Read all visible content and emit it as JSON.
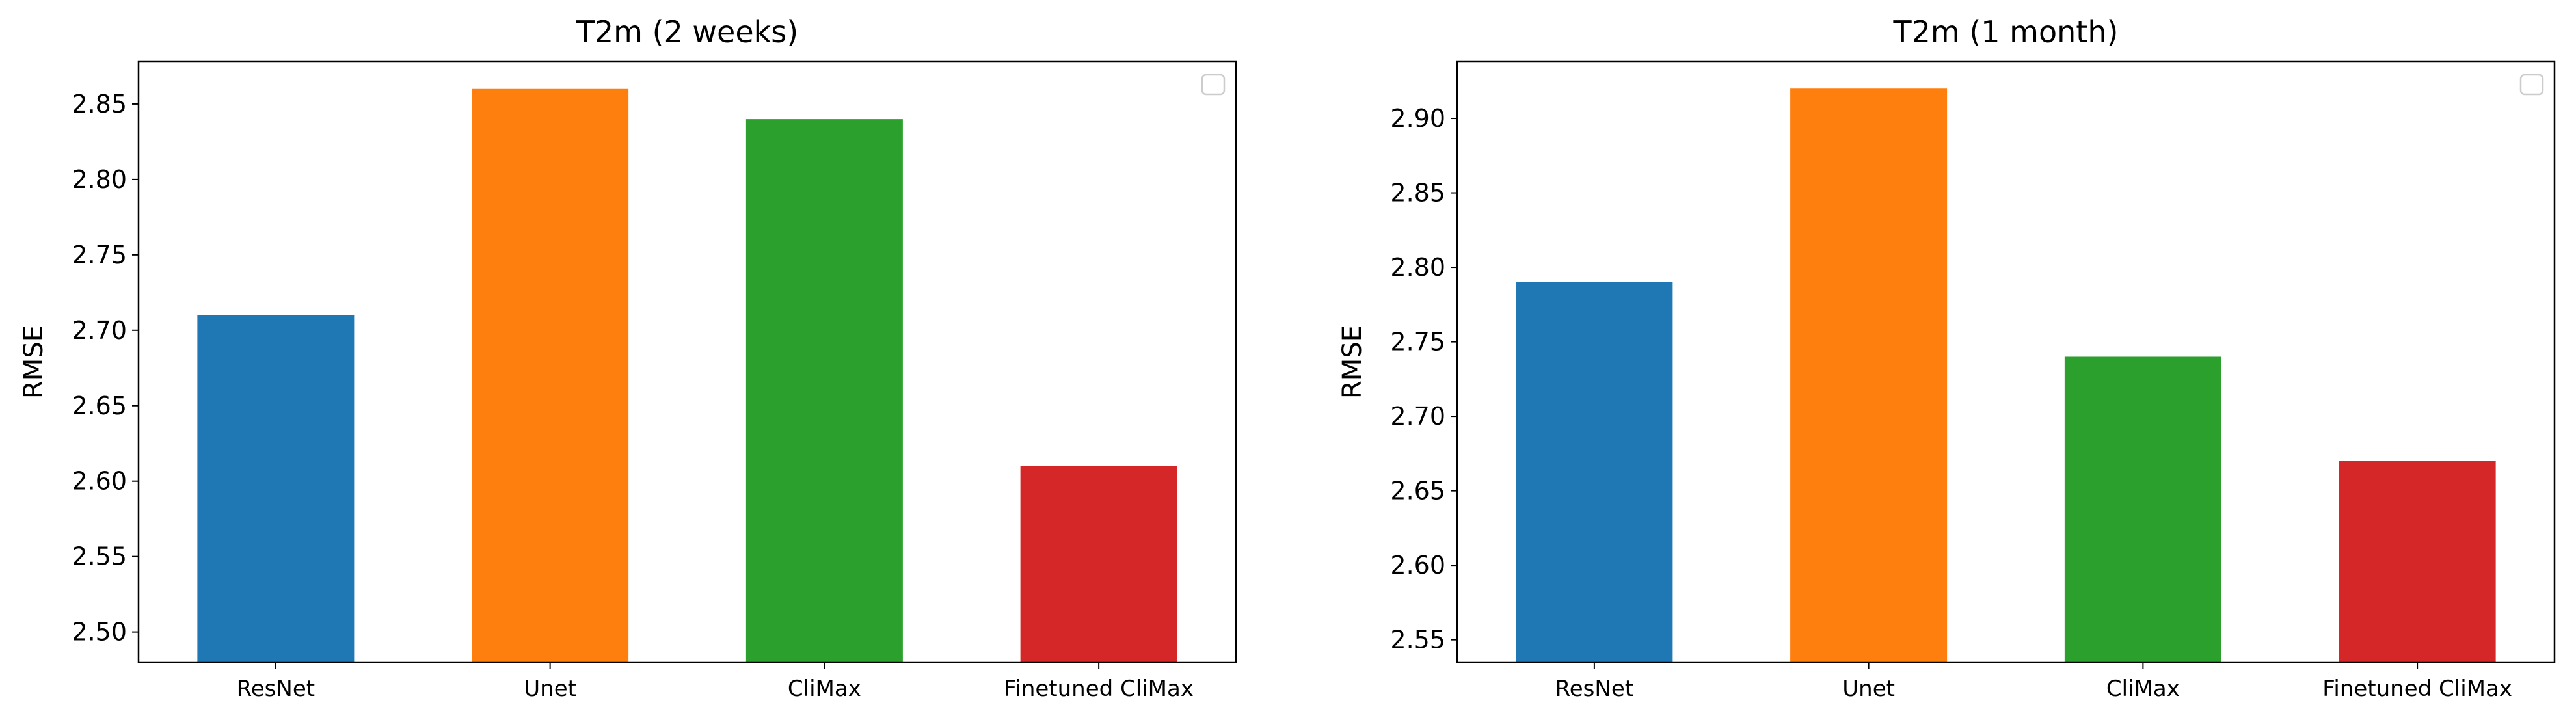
{
  "chart_data": [
    {
      "type": "bar",
      "title": "T2m (2 weeks)",
      "xlabel": "",
      "ylabel": "RMSE",
      "categories": [
        "ResNet",
        "Unet",
        "CliMax",
        "Finetuned CliMax"
      ],
      "values": [
        2.71,
        2.86,
        2.84,
        2.61
      ],
      "colors": [
        "#1f77b4",
        "#ff7f0e",
        "#2ca02c",
        "#d62728"
      ],
      "ylim": [
        2.48,
        2.878
      ],
      "yticks": [
        2.5,
        2.55,
        2.6,
        2.65,
        2.7,
        2.75,
        2.8,
        2.85
      ],
      "ytick_labels": [
        "2.50",
        "2.55",
        "2.60",
        "2.65",
        "2.70",
        "2.75",
        "2.80",
        "2.85"
      ],
      "grid": false,
      "legend": "top-right, empty"
    },
    {
      "type": "bar",
      "title": "T2m (1 month)",
      "xlabel": "",
      "ylabel": "RMSE",
      "categories": [
        "ResNet",
        "Unet",
        "CliMax",
        "Finetuned CliMax"
      ],
      "values": [
        2.79,
        2.92,
        2.74,
        2.67
      ],
      "colors": [
        "#1f77b4",
        "#ff7f0e",
        "#2ca02c",
        "#d62728"
      ],
      "ylim": [
        2.535,
        2.938
      ],
      "yticks": [
        2.55,
        2.6,
        2.65,
        2.7,
        2.75,
        2.8,
        2.85,
        2.9
      ],
      "ytick_labels": [
        "2.55",
        "2.60",
        "2.65",
        "2.70",
        "2.75",
        "2.80",
        "2.85",
        "2.90"
      ],
      "grid": false,
      "legend": "top-right, empty"
    }
  ]
}
